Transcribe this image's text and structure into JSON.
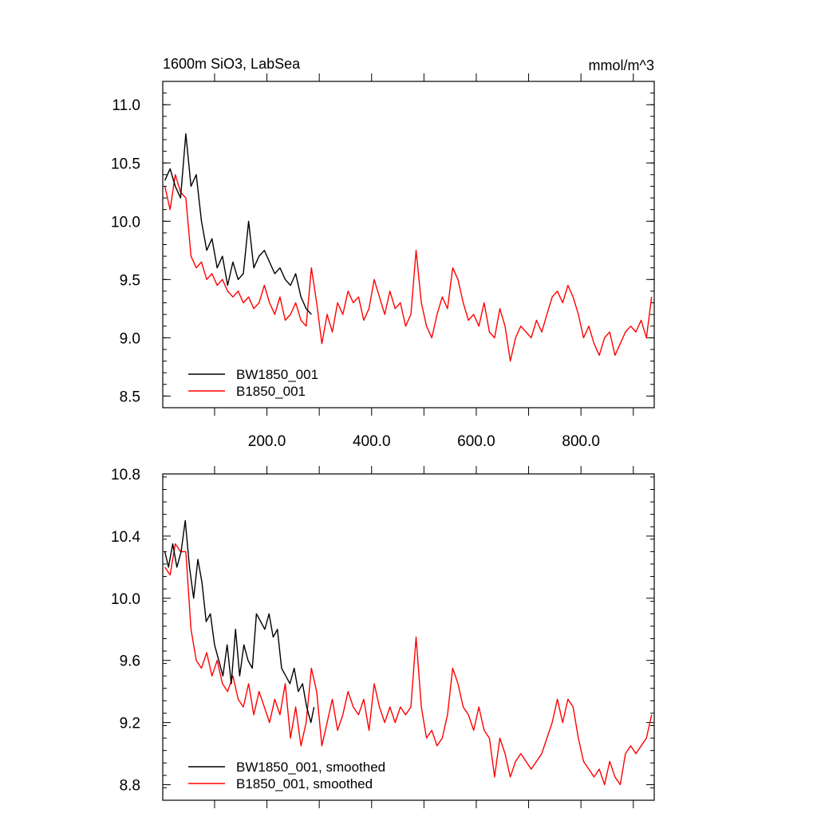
{
  "colors": {
    "background": "#ffffff",
    "axis": "#000000",
    "series_bw": "#000000",
    "series_b": "#ff0000"
  },
  "chart_data": [
    {
      "type": "line",
      "title": "1600m SiO3, LabSea",
      "units": "mmol/m^3",
      "xlim": [
        1,
        940
      ],
      "ylim": [
        8.4,
        11.2
      ],
      "xticks": [
        200,
        400,
        600,
        800
      ],
      "xtick_labels": [
        "200.0",
        "400.0",
        "600.0",
        "800.0"
      ],
      "yticks": [
        8.5,
        9.0,
        9.5,
        10.0,
        10.5,
        11.0
      ],
      "ytick_labels": [
        "8.5",
        "9.0",
        "9.5",
        "10.0",
        "10.5",
        "11.0"
      ],
      "grid": false,
      "legend_position": "bottom-left",
      "series": [
        {
          "name": "BW1850_001",
          "color": "#000000",
          "x": [
            5,
            15,
            25,
            35,
            45,
            55,
            65,
            75,
            85,
            95,
            105,
            115,
            125,
            135,
            145,
            155,
            165,
            175,
            185,
            195,
            205,
            215,
            225,
            235,
            245,
            255,
            265,
            275,
            285
          ],
          "values": [
            10.35,
            10.45,
            10.3,
            10.2,
            10.75,
            10.3,
            10.4,
            10.0,
            9.75,
            9.85,
            9.6,
            9.7,
            9.45,
            9.65,
            9.5,
            9.55,
            10.0,
            9.6,
            9.7,
            9.75,
            9.65,
            9.55,
            9.6,
            9.5,
            9.45,
            9.55,
            9.35,
            9.25,
            9.2
          ]
        },
        {
          "name": "B1850_001",
          "color": "#ff0000",
          "x": [
            5,
            15,
            25,
            35,
            45,
            55,
            65,
            75,
            85,
            95,
            105,
            115,
            125,
            135,
            145,
            155,
            165,
            175,
            185,
            195,
            205,
            215,
            225,
            235,
            245,
            255,
            265,
            275,
            285,
            295,
            305,
            315,
            325,
            335,
            345,
            355,
            365,
            375,
            385,
            395,
            405,
            415,
            425,
            435,
            445,
            455,
            465,
            475,
            485,
            495,
            505,
            515,
            525,
            535,
            545,
            555,
            565,
            575,
            585,
            595,
            605,
            615,
            625,
            635,
            645,
            655,
            665,
            675,
            685,
            695,
            705,
            715,
            725,
            735,
            745,
            755,
            765,
            775,
            785,
            795,
            805,
            815,
            825,
            835,
            845,
            855,
            865,
            875,
            885,
            895,
            905,
            915,
            925,
            935
          ],
          "values": [
            10.3,
            10.1,
            10.4,
            10.25,
            10.2,
            9.7,
            9.6,
            9.65,
            9.5,
            9.55,
            9.45,
            9.5,
            9.4,
            9.35,
            9.4,
            9.3,
            9.35,
            9.25,
            9.3,
            9.45,
            9.3,
            9.2,
            9.35,
            9.15,
            9.2,
            9.3,
            9.15,
            9.1,
            9.6,
            9.3,
            8.95,
            9.2,
            9.05,
            9.3,
            9.2,
            9.4,
            9.3,
            9.35,
            9.15,
            9.25,
            9.5,
            9.35,
            9.2,
            9.4,
            9.25,
            9.3,
            9.1,
            9.2,
            9.75,
            9.3,
            9.1,
            9.0,
            9.2,
            9.35,
            9.25,
            9.6,
            9.5,
            9.3,
            9.15,
            9.2,
            9.1,
            9.3,
            9.05,
            9.0,
            9.25,
            9.1,
            8.8,
            9.0,
            9.1,
            9.05,
            9.0,
            9.15,
            9.05,
            9.2,
            9.35,
            9.4,
            9.3,
            9.45,
            9.35,
            9.2,
            9.0,
            9.1,
            8.95,
            8.85,
            9.0,
            9.05,
            8.85,
            8.95,
            9.05,
            9.1,
            9.05,
            9.15,
            9.0,
            9.35
          ]
        }
      ],
      "legend": [
        "BW1850_001",
        "B1850_001"
      ]
    },
    {
      "type": "line",
      "xlim": [
        1,
        940
      ],
      "ylim": [
        8.7,
        10.8
      ],
      "yticks": [
        8.8,
        9.2,
        9.6,
        10.0,
        10.4,
        10.8
      ],
      "ytick_labels": [
        "8.8",
        "9.2",
        "9.6",
        "10.0",
        "10.4",
        "10.8"
      ],
      "xticks": [
        200,
        400,
        600,
        800
      ],
      "grid": false,
      "legend_position": "bottom-left",
      "series": [
        {
          "name": "BW1850_001, smoothed",
          "color": "#000000",
          "x": [
            5,
            12,
            20,
            28,
            36,
            44,
            52,
            60,
            68,
            76,
            84,
            92,
            100,
            108,
            116,
            124,
            132,
            140,
            148,
            156,
            164,
            172,
            180,
            188,
            196,
            204,
            212,
            220,
            228,
            236,
            244,
            252,
            260,
            268,
            276,
            284,
            290
          ],
          "values": [
            10.3,
            10.2,
            10.35,
            10.2,
            10.3,
            10.5,
            10.2,
            10.0,
            10.25,
            10.1,
            9.85,
            9.9,
            9.7,
            9.6,
            9.5,
            9.7,
            9.45,
            9.8,
            9.5,
            9.7,
            9.6,
            9.55,
            9.9,
            9.85,
            9.8,
            9.9,
            9.75,
            9.8,
            9.55,
            9.5,
            9.45,
            9.55,
            9.4,
            9.45,
            9.3,
            9.2,
            9.3
          ]
        },
        {
          "name": "B1850_001, smoothed",
          "color": "#ff0000",
          "x": [
            5,
            15,
            25,
            35,
            45,
            55,
            65,
            75,
            85,
            95,
            105,
            115,
            125,
            135,
            145,
            155,
            165,
            175,
            185,
            195,
            205,
            215,
            225,
            235,
            245,
            255,
            265,
            275,
            285,
            295,
            305,
            315,
            325,
            335,
            345,
            355,
            365,
            375,
            385,
            395,
            405,
            415,
            425,
            435,
            445,
            455,
            465,
            475,
            485,
            495,
            505,
            515,
            525,
            535,
            545,
            555,
            565,
            575,
            585,
            595,
            605,
            615,
            625,
            635,
            645,
            655,
            665,
            675,
            685,
            695,
            705,
            715,
            725,
            735,
            745,
            755,
            765,
            775,
            785,
            795,
            805,
            815,
            825,
            835,
            845,
            855,
            865,
            875,
            885,
            895,
            905,
            915,
            925,
            935
          ],
          "values": [
            10.2,
            10.15,
            10.35,
            10.3,
            10.3,
            9.8,
            9.6,
            9.55,
            9.65,
            9.5,
            9.6,
            9.45,
            9.4,
            9.5,
            9.35,
            9.3,
            9.45,
            9.25,
            9.4,
            9.3,
            9.2,
            9.35,
            9.25,
            9.45,
            9.1,
            9.3,
            9.05,
            9.2,
            9.55,
            9.4,
            9.05,
            9.2,
            9.35,
            9.15,
            9.25,
            9.4,
            9.3,
            9.25,
            9.35,
            9.15,
            9.45,
            9.3,
            9.2,
            9.3,
            9.2,
            9.3,
            9.25,
            9.3,
            9.75,
            9.3,
            9.1,
            9.15,
            9.05,
            9.1,
            9.25,
            9.55,
            9.45,
            9.3,
            9.25,
            9.15,
            9.3,
            9.15,
            9.1,
            8.85,
            9.1,
            9.0,
            8.85,
            8.95,
            9.0,
            8.95,
            8.9,
            8.95,
            9.0,
            9.1,
            9.2,
            9.35,
            9.2,
            9.35,
            9.3,
            9.1,
            8.95,
            8.9,
            8.85,
            8.9,
            8.8,
            8.95,
            8.85,
            8.8,
            9.0,
            9.05,
            9.0,
            9.05,
            9.1,
            9.25
          ]
        }
      ],
      "legend": [
        "BW1850_001, smoothed",
        "B1850_001, smoothed"
      ]
    }
  ]
}
